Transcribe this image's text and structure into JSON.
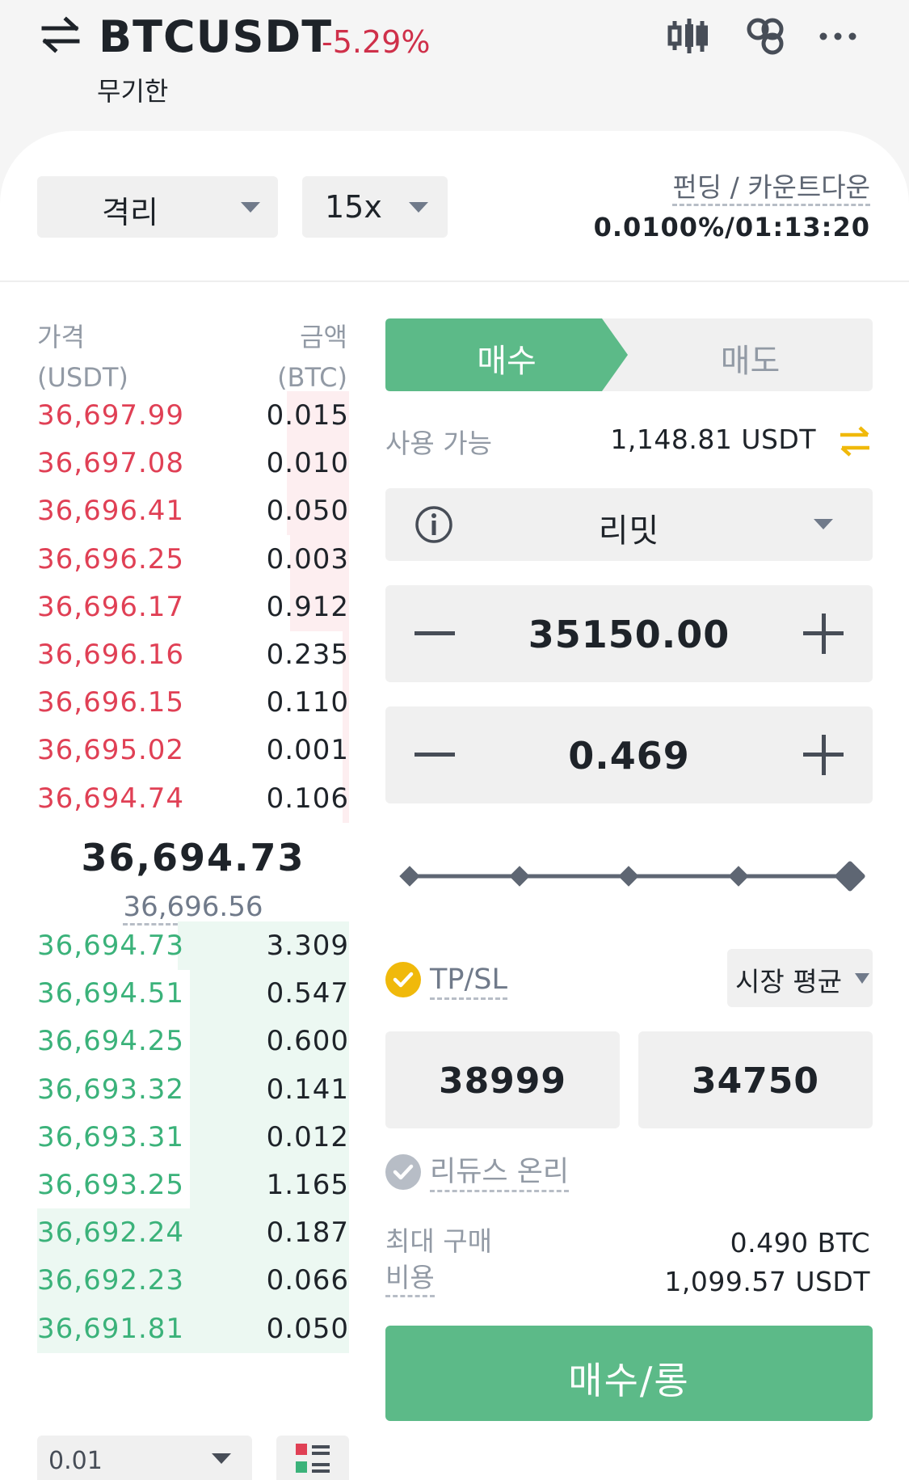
{
  "header": {
    "symbol": "BTCUSDT",
    "change": "-5.29%",
    "contract_type": "무기한",
    "icons": [
      "swap-arrows-icon",
      "candlestick-chart-icon",
      "link-icon",
      "more-icon"
    ]
  },
  "controls": {
    "margin_mode": "격리",
    "leverage": "15x",
    "funding_label": "펀딩 / 카운트다운",
    "funding_value": "0.0100%/01:13:20"
  },
  "orderbook": {
    "price_header_line1": "가격",
    "price_header_line2": "(USDT)",
    "amount_header_line1": "금액",
    "amount_header_line2": "(BTC)",
    "asks": [
      {
        "price": "36,697.99",
        "amount": "0.015",
        "depth": 0.2
      },
      {
        "price": "36,697.08",
        "amount": "0.010",
        "depth": 0.2
      },
      {
        "price": "36,696.41",
        "amount": "0.050",
        "depth": 0.2
      },
      {
        "price": "36,696.25",
        "amount": "0.003",
        "depth": 0.19
      },
      {
        "price": "36,696.17",
        "amount": "0.912",
        "depth": 0.19
      },
      {
        "price": "36,696.16",
        "amount": "0.235",
        "depth": 0.02
      },
      {
        "price": "36,696.15",
        "amount": "0.110",
        "depth": 0.02
      },
      {
        "price": "36,695.02",
        "amount": "0.001",
        "depth": 0.02
      },
      {
        "price": "36,694.74",
        "amount": "0.106",
        "depth": 0.02
      }
    ],
    "last_price": "36,694.73",
    "mark_price": "36,696.56",
    "bids": [
      {
        "price": "36,694.73",
        "amount": "3.309",
        "depth": 0.55
      },
      {
        "price": "36,694.51",
        "amount": "0.547",
        "depth": 0.51
      },
      {
        "price": "36,694.25",
        "amount": "0.600",
        "depth": 0.51
      },
      {
        "price": "36,693.32",
        "amount": "0.141",
        "depth": 0.51
      },
      {
        "price": "36,693.31",
        "amount": "0.012",
        "depth": 0.51
      },
      {
        "price": "36,693.25",
        "amount": "1.165",
        "depth": 0.51
      },
      {
        "price": "36,692.24",
        "amount": "0.187",
        "depth": 1.0
      },
      {
        "price": "36,692.23",
        "amount": "0.066",
        "depth": 1.0
      },
      {
        "price": "36,691.81",
        "amount": "0.050",
        "depth": 1.0
      }
    ],
    "depth_step": "0.01"
  },
  "order": {
    "buy_tab": "매수",
    "sell_tab": "매도",
    "available_label": "사용 가능",
    "available_value": "1,148.81 USDT",
    "order_type": "리밋",
    "price": "35150.00",
    "quantity": "0.469",
    "tpsl_label": "TP/SL",
    "tpsl_checked": true,
    "trigger_type": "시장 평균",
    "take_profit": "38999",
    "stop_loss": "34750",
    "reduce_only_label": "리듀스 온리",
    "reduce_only_checked": false,
    "max_buy_label": "최대 구매",
    "max_buy_value": "0.490 BTC",
    "cost_label": "비용",
    "cost_value": "1,099.57 USDT",
    "submit_label": "매수/롱"
  },
  "colors": {
    "buy": "#5cba88",
    "sell": "#e04055",
    "accent_yellow": "#f0b90b"
  }
}
